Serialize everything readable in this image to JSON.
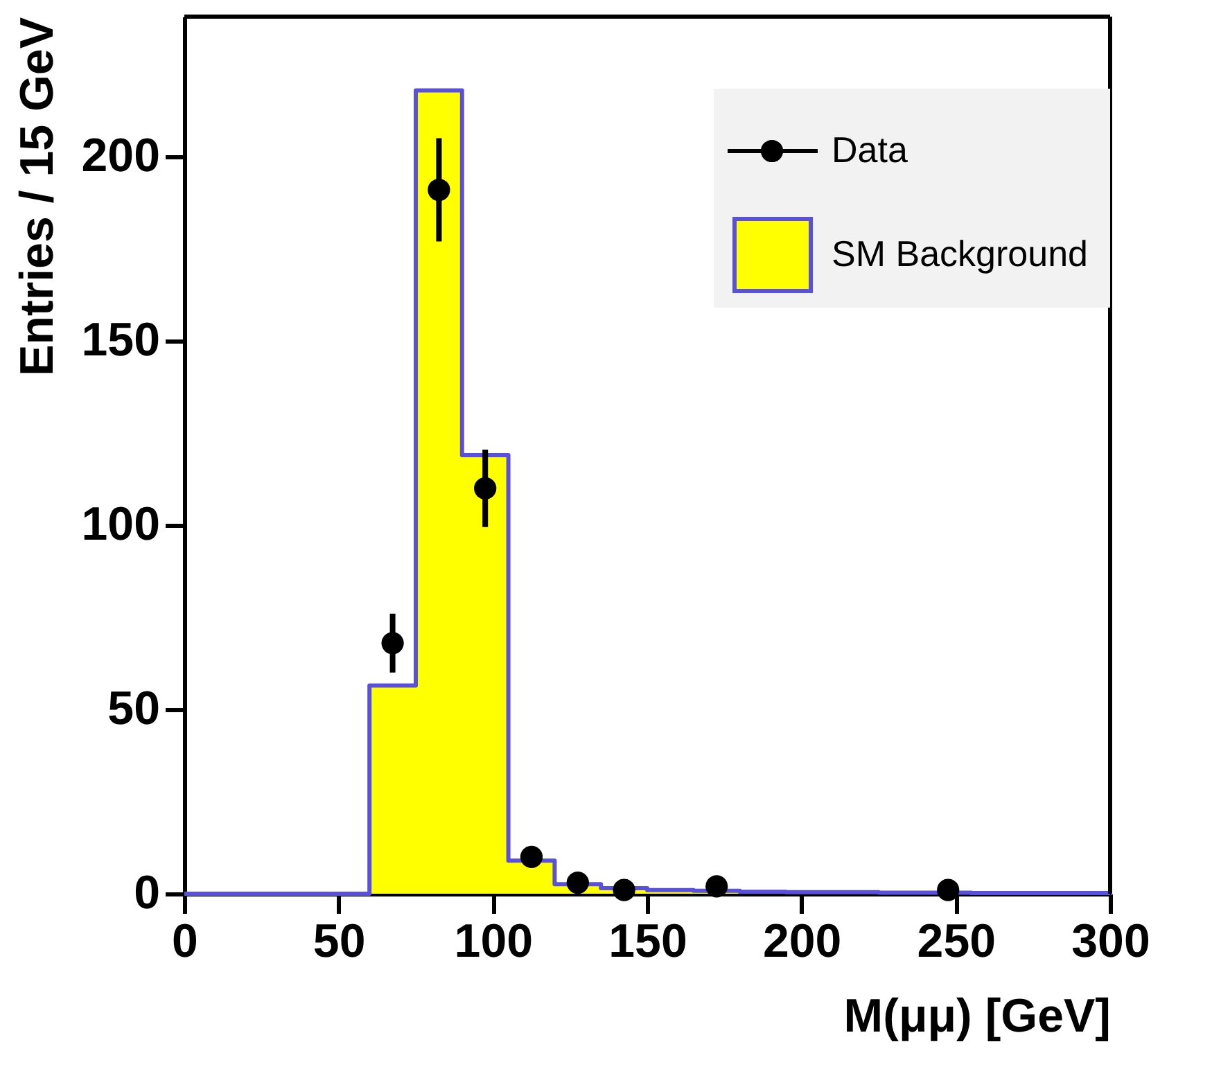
{
  "chart_data": {
    "type": "histogram",
    "xlabel": "M(μμ) [GeV]",
    "ylabel": "Entries / 15 GeV",
    "xlim": [
      0,
      300
    ],
    "xticks": [
      0,
      50,
      100,
      150,
      200,
      250,
      300
    ],
    "ylim": [
      0,
      238
    ],
    "yticks": [
      0,
      50,
      100,
      150,
      200
    ],
    "grid": false,
    "legend": "top right",
    "series": [
      {
        "name": "SM Background",
        "color": "#ffff00",
        "bins": [
          0,
          15,
          30,
          45,
          60,
          75,
          90,
          105,
          120,
          135,
          150,
          165,
          180,
          195,
          210,
          225,
          240,
          255,
          270,
          285,
          300
        ],
        "values": [
          0,
          0,
          0,
          0,
          56.5,
          218,
          119,
          9,
          2.6,
          1.5,
          1,
          0.8,
          0.5,
          0.4,
          0.4,
          0.3,
          0.3,
          0.2,
          0.2,
          0.2
        ]
      },
      {
        "name": "Data",
        "type": "scatter",
        "color": "#000000",
        "marker": "circle",
        "x": [
          67.5,
          82.5,
          97.5,
          112.5,
          127.5,
          142.5,
          172.5,
          247.5
        ],
        "values": [
          68,
          191,
          110,
          10,
          3,
          1,
          2,
          1
        ],
        "errors": [
          8,
          14,
          10.5,
          null,
          null,
          null,
          null,
          null
        ]
      }
    ]
  }
}
